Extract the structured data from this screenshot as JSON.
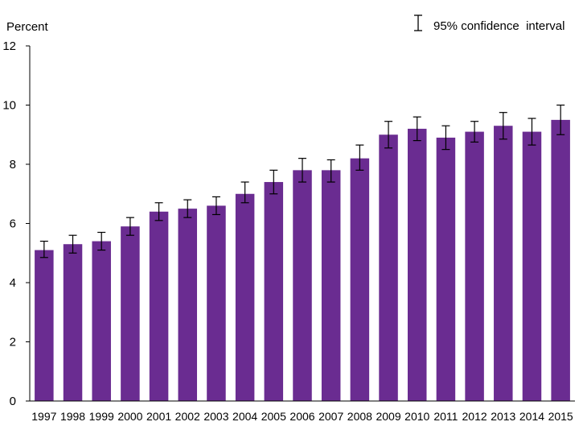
{
  "chart_data": {
    "type": "bar",
    "title": "",
    "ylabel": "Percent",
    "xlabel": "",
    "ylim": [
      0,
      12
    ],
    "yticks": [
      0,
      2,
      4,
      6,
      8,
      10,
      12
    ],
    "grid": false,
    "legend": {
      "label": "95% confidence  interval",
      "position": "top-right"
    },
    "bar_color": "#6a2c91",
    "categories": [
      "1997",
      "1998",
      "1999",
      "2000",
      "2001",
      "2002",
      "2003",
      "2004",
      "2005",
      "2006",
      "2007",
      "2008",
      "2009",
      "2010",
      "2011",
      "2012",
      "2013",
      "2014",
      "2015"
    ],
    "values": [
      5.1,
      5.3,
      5.4,
      5.9,
      6.4,
      6.5,
      6.6,
      7.0,
      7.4,
      7.8,
      7.8,
      8.2,
      9.0,
      9.2,
      8.9,
      9.1,
      9.3,
      9.1,
      9.5
    ],
    "ci_lower": [
      4.85,
      5.0,
      5.1,
      5.6,
      6.1,
      6.2,
      6.3,
      6.7,
      7.0,
      7.4,
      7.4,
      7.8,
      8.55,
      8.8,
      8.5,
      8.75,
      8.85,
      8.65,
      9.0
    ],
    "ci_upper": [
      5.4,
      5.6,
      5.7,
      6.2,
      6.7,
      6.8,
      6.9,
      7.4,
      7.8,
      8.2,
      8.15,
      8.65,
      9.45,
      9.6,
      9.3,
      9.45,
      9.75,
      9.55,
      10.0
    ]
  }
}
